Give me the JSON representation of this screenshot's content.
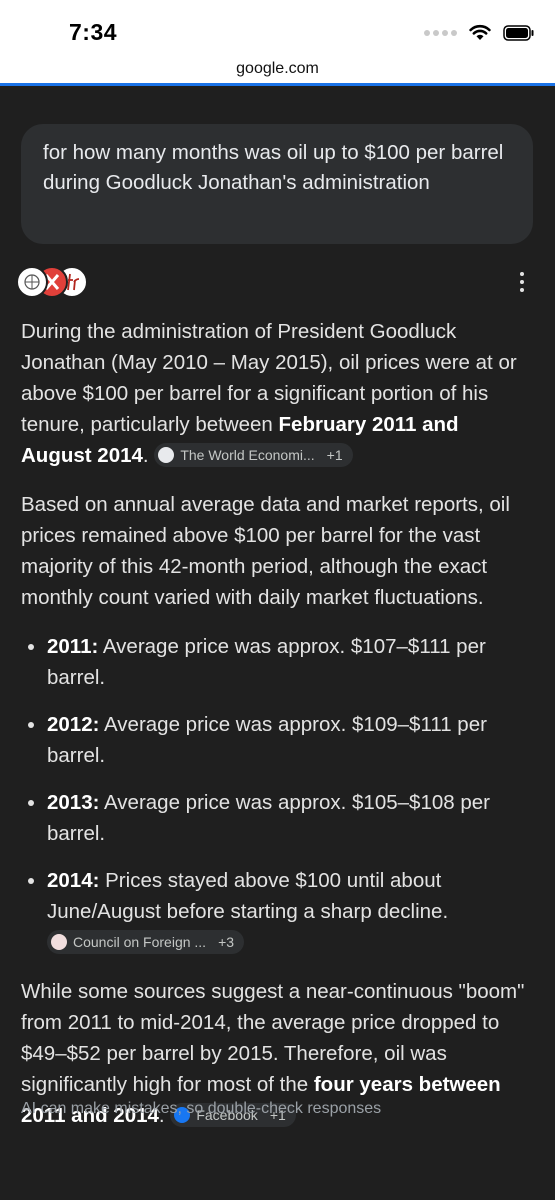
{
  "status": {
    "time": "7:34",
    "url": "google.com"
  },
  "query": "for how many months was oil up to $100 per barrel during Goodluck Jonathan's administration",
  "answer": {
    "p1_text": "During the administration of President Goodluck Jonathan (May 2010 – May 2015), oil prices were at or above $100 per barrel for a significant portion of his tenure, particularly between ",
    "p1_bold": "February 2011 and August 2014",
    "p1_end": ".",
    "p1_chip": {
      "label": "The World Economi...",
      "plus": "+1"
    },
    "p2": "Based on annual average data and market reports, oil prices remained above $100 per barrel for the vast majority of this 42-month period, although the exact monthly count varied with daily market fluctuations.",
    "items": [
      {
        "year": "2011:",
        "text": " Average price was approx. $107–$111 per barrel."
      },
      {
        "year": "2012:",
        "text": " Average price was approx. $109–$111 per barrel."
      },
      {
        "year": "2013:",
        "text": " Average price was approx. $105–$108 per barrel."
      },
      {
        "year": "2014:",
        "text": " Prices stayed above $100 until about June/August before starting a sharp decline."
      }
    ],
    "item4_chip": {
      "label": "Council on Foreign ...",
      "plus": "+3"
    },
    "p3_text": "While some sources suggest a near-continuous \"boom\" from 2011 to mid-2014, the average price dropped to $49–$52 per barrel by 2015. Therefore, oil was significantly high for most of the ",
    "p3_bold": "four years between 2011 and 2014",
    "p3_end": ".",
    "p3_chip": {
      "label": "Facebook",
      "plus": "+1"
    },
    "disclaimer": "AI can make mistakes, so double-check responses"
  },
  "colors": {
    "accent": "#1a73e8",
    "facebook": "#1877f2"
  }
}
